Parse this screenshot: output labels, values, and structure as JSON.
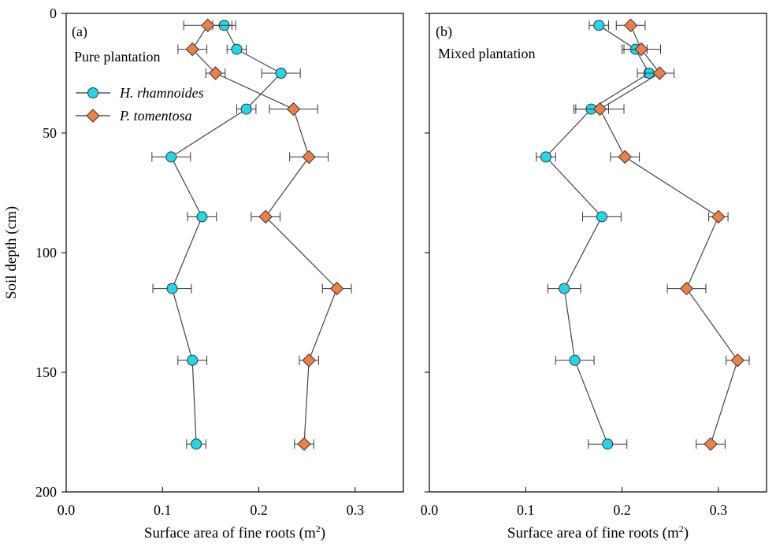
{
  "chart_data": [
    {
      "type": "line",
      "panel_label": "(a)",
      "annotation": "Pure plantation",
      "xlabel": "Surface area of fine roots (m",
      "xlabel_sup": "2",
      "xlabel_close": ")",
      "ylabel": "Soil depth (cm)",
      "xlim": [
        0.0,
        0.35
      ],
      "ylim": [
        200,
        0
      ],
      "x_ticks": [
        "0.0",
        "0.1",
        "0.2",
        "0.3"
      ],
      "x_tick_values": [
        0.0,
        0.1,
        0.2,
        0.3
      ],
      "y_ticks": [
        "0",
        "50",
        "100",
        "150",
        "200"
      ],
      "y_tick_values": [
        0,
        50,
        100,
        150,
        200
      ],
      "legend": "top-left",
      "grid": false,
      "series": [
        {
          "name": "H. rhamnoides",
          "marker": "circle",
          "color": "#22d8e8",
          "points": [
            {
              "x": 0.164,
              "y": 5,
              "err": 0.012
            },
            {
              "x": 0.177,
              "y": 15,
              "err": 0.01
            },
            {
              "x": 0.223,
              "y": 25,
              "err": 0.02
            },
            {
              "x": 0.187,
              "y": 40,
              "err": 0.01
            },
            {
              "x": 0.109,
              "y": 60,
              "err": 0.02
            },
            {
              "x": 0.141,
              "y": 85,
              "err": 0.015
            },
            {
              "x": 0.11,
              "y": 115,
              "err": 0.02
            },
            {
              "x": 0.131,
              "y": 145,
              "err": 0.015
            },
            {
              "x": 0.135,
              "y": 180,
              "err": 0.01
            }
          ]
        },
        {
          "name": "P. tomentosa",
          "marker": "diamond",
          "color": "#f07f45",
          "points": [
            {
              "x": 0.147,
              "y": 5,
              "err": 0.025
            },
            {
              "x": 0.131,
              "y": 15,
              "err": 0.015
            },
            {
              "x": 0.155,
              "y": 25,
              "err": 0.01
            },
            {
              "x": 0.236,
              "y": 40,
              "err": 0.025
            },
            {
              "x": 0.252,
              "y": 60,
              "err": 0.02
            },
            {
              "x": 0.207,
              "y": 85,
              "err": 0.015
            },
            {
              "x": 0.281,
              "y": 115,
              "err": 0.015
            },
            {
              "x": 0.252,
              "y": 145,
              "err": 0.01
            },
            {
              "x": 0.247,
              "y": 180,
              "err": 0.01
            }
          ]
        }
      ]
    },
    {
      "type": "line",
      "panel_label": "(b)",
      "annotation": "Mixed plantation",
      "xlabel": "Surface area of fine roots (m",
      "xlabel_sup": "2",
      "xlabel_close": ")",
      "ylabel": "",
      "xlim": [
        0.0,
        0.35
      ],
      "ylim": [
        200,
        0
      ],
      "x_ticks": [
        "0.0",
        "0.1",
        "0.2",
        "0.3"
      ],
      "x_tick_values": [
        0.0,
        0.1,
        0.2,
        0.3
      ],
      "y_ticks": [],
      "y_tick_values": [
        0,
        50,
        100,
        150,
        200
      ],
      "grid": false,
      "series": [
        {
          "name": "H. rhamnoides",
          "marker": "circle",
          "color": "#22d8e8",
          "points": [
            {
              "x": 0.176,
              "y": 5,
              "err": 0.01
            },
            {
              "x": 0.214,
              "y": 15,
              "err": 0.012
            },
            {
              "x": 0.228,
              "y": 25,
              "err": 0.012
            },
            {
              "x": 0.168,
              "y": 40,
              "err": 0.018
            },
            {
              "x": 0.121,
              "y": 60,
              "err": 0.01
            },
            {
              "x": 0.179,
              "y": 85,
              "err": 0.02
            },
            {
              "x": 0.14,
              "y": 115,
              "err": 0.017
            },
            {
              "x": 0.151,
              "y": 145,
              "err": 0.02
            },
            {
              "x": 0.185,
              "y": 180,
              "err": 0.02
            }
          ]
        },
        {
          "name": "P. tomentosa",
          "marker": "diamond",
          "color": "#f07f45",
          "points": [
            {
              "x": 0.209,
              "y": 5,
              "err": 0.015
            },
            {
              "x": 0.22,
              "y": 15,
              "err": 0.02
            },
            {
              "x": 0.239,
              "y": 25,
              "err": 0.015
            },
            {
              "x": 0.177,
              "y": 40,
              "err": 0.025
            },
            {
              "x": 0.203,
              "y": 60,
              "err": 0.015
            },
            {
              "x": 0.3,
              "y": 85,
              "err": 0.01
            },
            {
              "x": 0.267,
              "y": 115,
              "err": 0.02
            },
            {
              "x": 0.32,
              "y": 145,
              "err": 0.012
            },
            {
              "x": 0.292,
              "y": 180,
              "err": 0.015
            }
          ]
        }
      ]
    }
  ]
}
